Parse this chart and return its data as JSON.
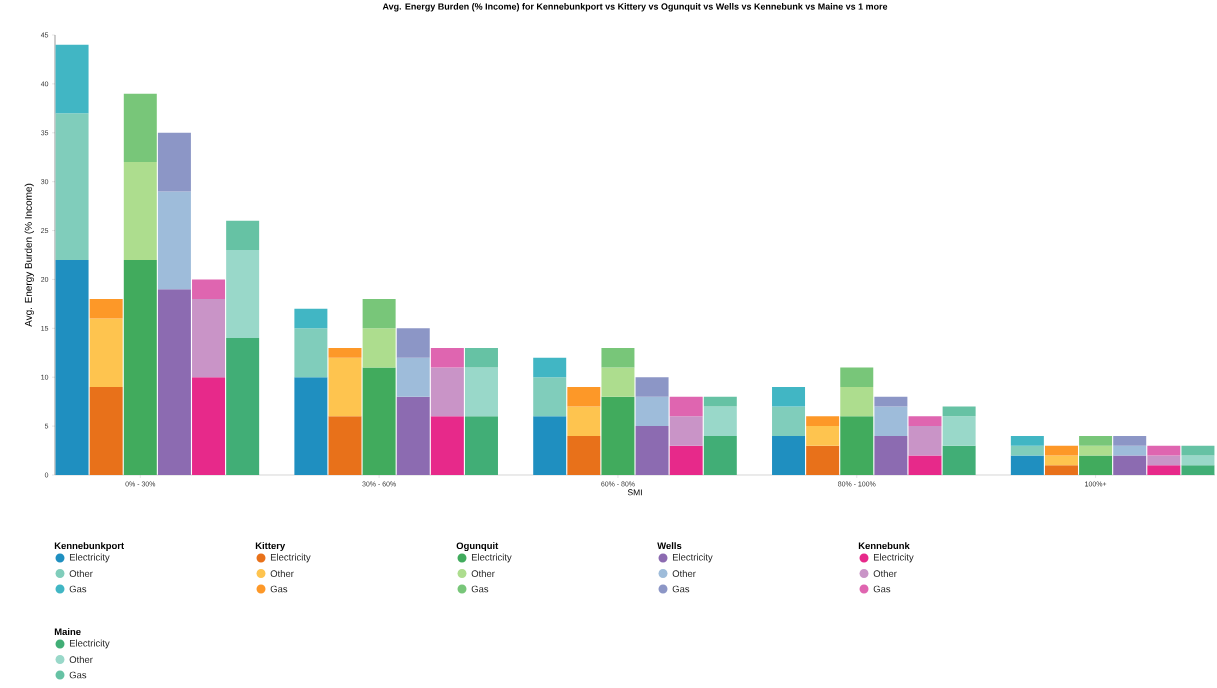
{
  "chart_data": {
    "type": "bar",
    "stacked": true,
    "title": "Avg. Energy Burden (% Income) for Kennebunkport vs Kittery vs Ogunquit vs Wells vs Kennebunk vs Maine vs 1 more",
    "xlabel": "SMI",
    "ylabel": "Avg. Energy Burden (% Income)",
    "annotations": [
      "Kennebunkport",
      "Kittery",
      "Ogunquit",
      "Wells",
      "Kennebunk",
      "Maine"
    ],
    "categories": [
      null,
      null,
      "0% - 30%",
      null,
      null,
      null,
      null,
      null,
      null,
      "30% - 60%",
      null,
      null,
      null,
      null,
      null,
      null,
      "60% - 80%",
      null,
      null,
      null,
      null,
      null,
      null,
      "80% - 100%",
      null,
      null,
      null,
      null,
      null,
      null,
      "100%+",
      null,
      null,
      null
    ],
    "ylim": [
      0,
      45
    ],
    "yticks": [
      0,
      5,
      10,
      15,
      20,
      25,
      30,
      35,
      40,
      45
    ],
    "legend": "bottom",
    "series": [
      {
        "name": "Electricity",
        "values": [
          22,
          9,
          22,
          19,
          10,
          14,
          null,
          10,
          6,
          11,
          8,
          6,
          6,
          null,
          6,
          4,
          8,
          5,
          3,
          4,
          null,
          4,
          3,
          6,
          4,
          2,
          3,
          null,
          2,
          1,
          2,
          2,
          1,
          1
        ],
        "colors": [
          "#1f8fc0",
          "#e8711a",
          "#41ab5d",
          "#8c6bb1",
          "#e7298a",
          "#41ae76",
          null,
          "#1f8fc0",
          "#e8711a",
          "#41ab5d",
          "#8c6bb1",
          "#e7298a",
          "#41ae76",
          null,
          "#1f8fc0",
          "#e8711a",
          "#41ab5d",
          "#8c6bb1",
          "#e7298a",
          "#41ae76",
          null,
          "#1f8fc0",
          "#e8711a",
          "#41ab5d",
          "#8c6bb1",
          "#e7298a",
          "#41ae76",
          null,
          "#1f8fc0",
          "#e8711a",
          "#41ab5d",
          "#8c6bb1",
          "#e7298a",
          "#41ae76"
        ]
      },
      {
        "name": "Other",
        "values": [
          15,
          7,
          10,
          10,
          8,
          9,
          null,
          5,
          6,
          4,
          4,
          5,
          5,
          null,
          4,
          3,
          3,
          3,
          3,
          3,
          null,
          3,
          2,
          3,
          3,
          3,
          3,
          null,
          1,
          1,
          1,
          1,
          1,
          1
        ],
        "colors": [
          "#80cdbb",
          "#fec44f",
          "#addd8e",
          "#9ebcda",
          "#c994c7",
          "#99d8c9",
          null,
          "#80cdbb",
          "#fec44f",
          "#addd8e",
          "#9ebcda",
          "#c994c7",
          "#99d8c9",
          null,
          "#80cdbb",
          "#fec44f",
          "#addd8e",
          "#9ebcda",
          "#c994c7",
          "#99d8c9",
          null,
          "#80cdbb",
          "#fec44f",
          "#addd8e",
          "#9ebcda",
          "#c994c7",
          "#99d8c9",
          null,
          "#80cdbb",
          "#fec44f",
          "#addd8e",
          "#9ebcda",
          "#c994c7",
          "#99d8c9"
        ]
      },
      {
        "name": "Gas",
        "values": [
          7,
          2,
          7,
          6,
          2,
          3,
          null,
          2,
          1,
          3,
          3,
          2,
          2,
          null,
          2,
          2,
          2,
          2,
          2,
          1,
          null,
          2,
          1,
          2,
          1,
          1,
          1,
          null,
          1,
          1,
          1,
          1,
          1,
          1
        ],
        "colors": [
          "#41b6c4",
          "#fd9828",
          "#78c679",
          "#8c96c6",
          "#df65b0",
          "#66c2a4",
          null,
          "#41b6c4",
          "#fd9828",
          "#78c679",
          "#8c96c6",
          "#df65b0",
          "#66c2a4",
          null,
          "#41b6c4",
          "#fd9828",
          "#78c679",
          "#8c96c6",
          "#df65b0",
          "#66c2a4",
          null,
          "#41b6c4",
          "#fd9828",
          "#78c679",
          "#8c96c6",
          "#df65b0",
          "#66c2a4",
          null,
          "#41b6c4",
          "#fd9828",
          "#78c679",
          "#8c96c6",
          "#df65b0",
          "#66c2a4"
        ]
      }
    ]
  }
}
